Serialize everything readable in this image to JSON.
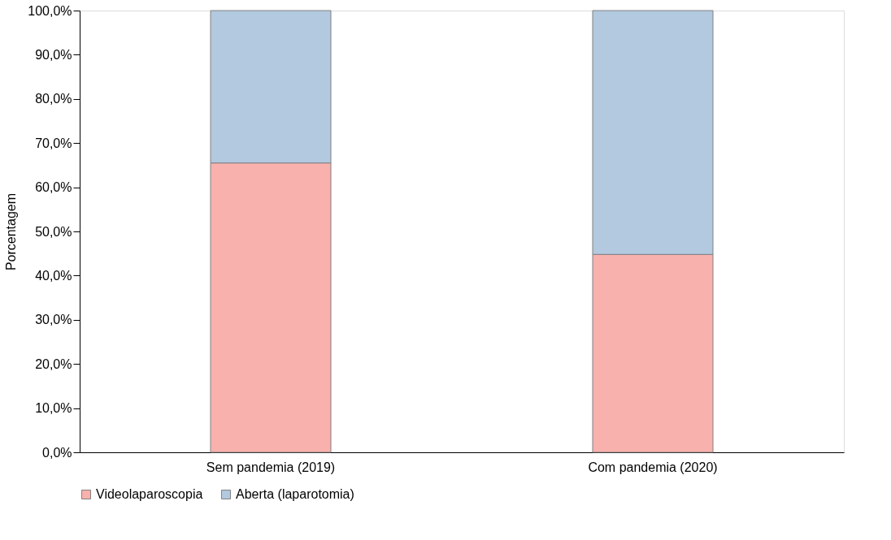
{
  "chart_data": {
    "type": "bar",
    "stacked": true,
    "ylabel": "Porcentagem",
    "categories": [
      "Sem pandemia (2019)",
      "Com pandemia (2020)"
    ],
    "series": [
      {
        "name": "Videolaparoscopia",
        "color": "#f9b1ad",
        "values": [
          65.5,
          44.8
        ]
      },
      {
        "name": "Aberta (laparotomia)",
        "color": "#b2c9df",
        "values": [
          34.5,
          55.2
        ]
      }
    ],
    "ylim": [
      0,
      100
    ],
    "yticks": [
      {
        "value": 0,
        "label": "0,0%"
      },
      {
        "value": 10,
        "label": "10,0%"
      },
      {
        "value": 20,
        "label": "20,0%"
      },
      {
        "value": 30,
        "label": "30,0%"
      },
      {
        "value": 40,
        "label": "40,0%"
      },
      {
        "value": 50,
        "label": "50,0%"
      },
      {
        "value": 60,
        "label": "60,0%"
      },
      {
        "value": 70,
        "label": "70,0%"
      },
      {
        "value": 80,
        "label": "80,0%"
      },
      {
        "value": 90,
        "label": "90,0%"
      },
      {
        "value": 100,
        "label": "100,0%"
      }
    ],
    "grid": false,
    "legend": "bottom"
  }
}
